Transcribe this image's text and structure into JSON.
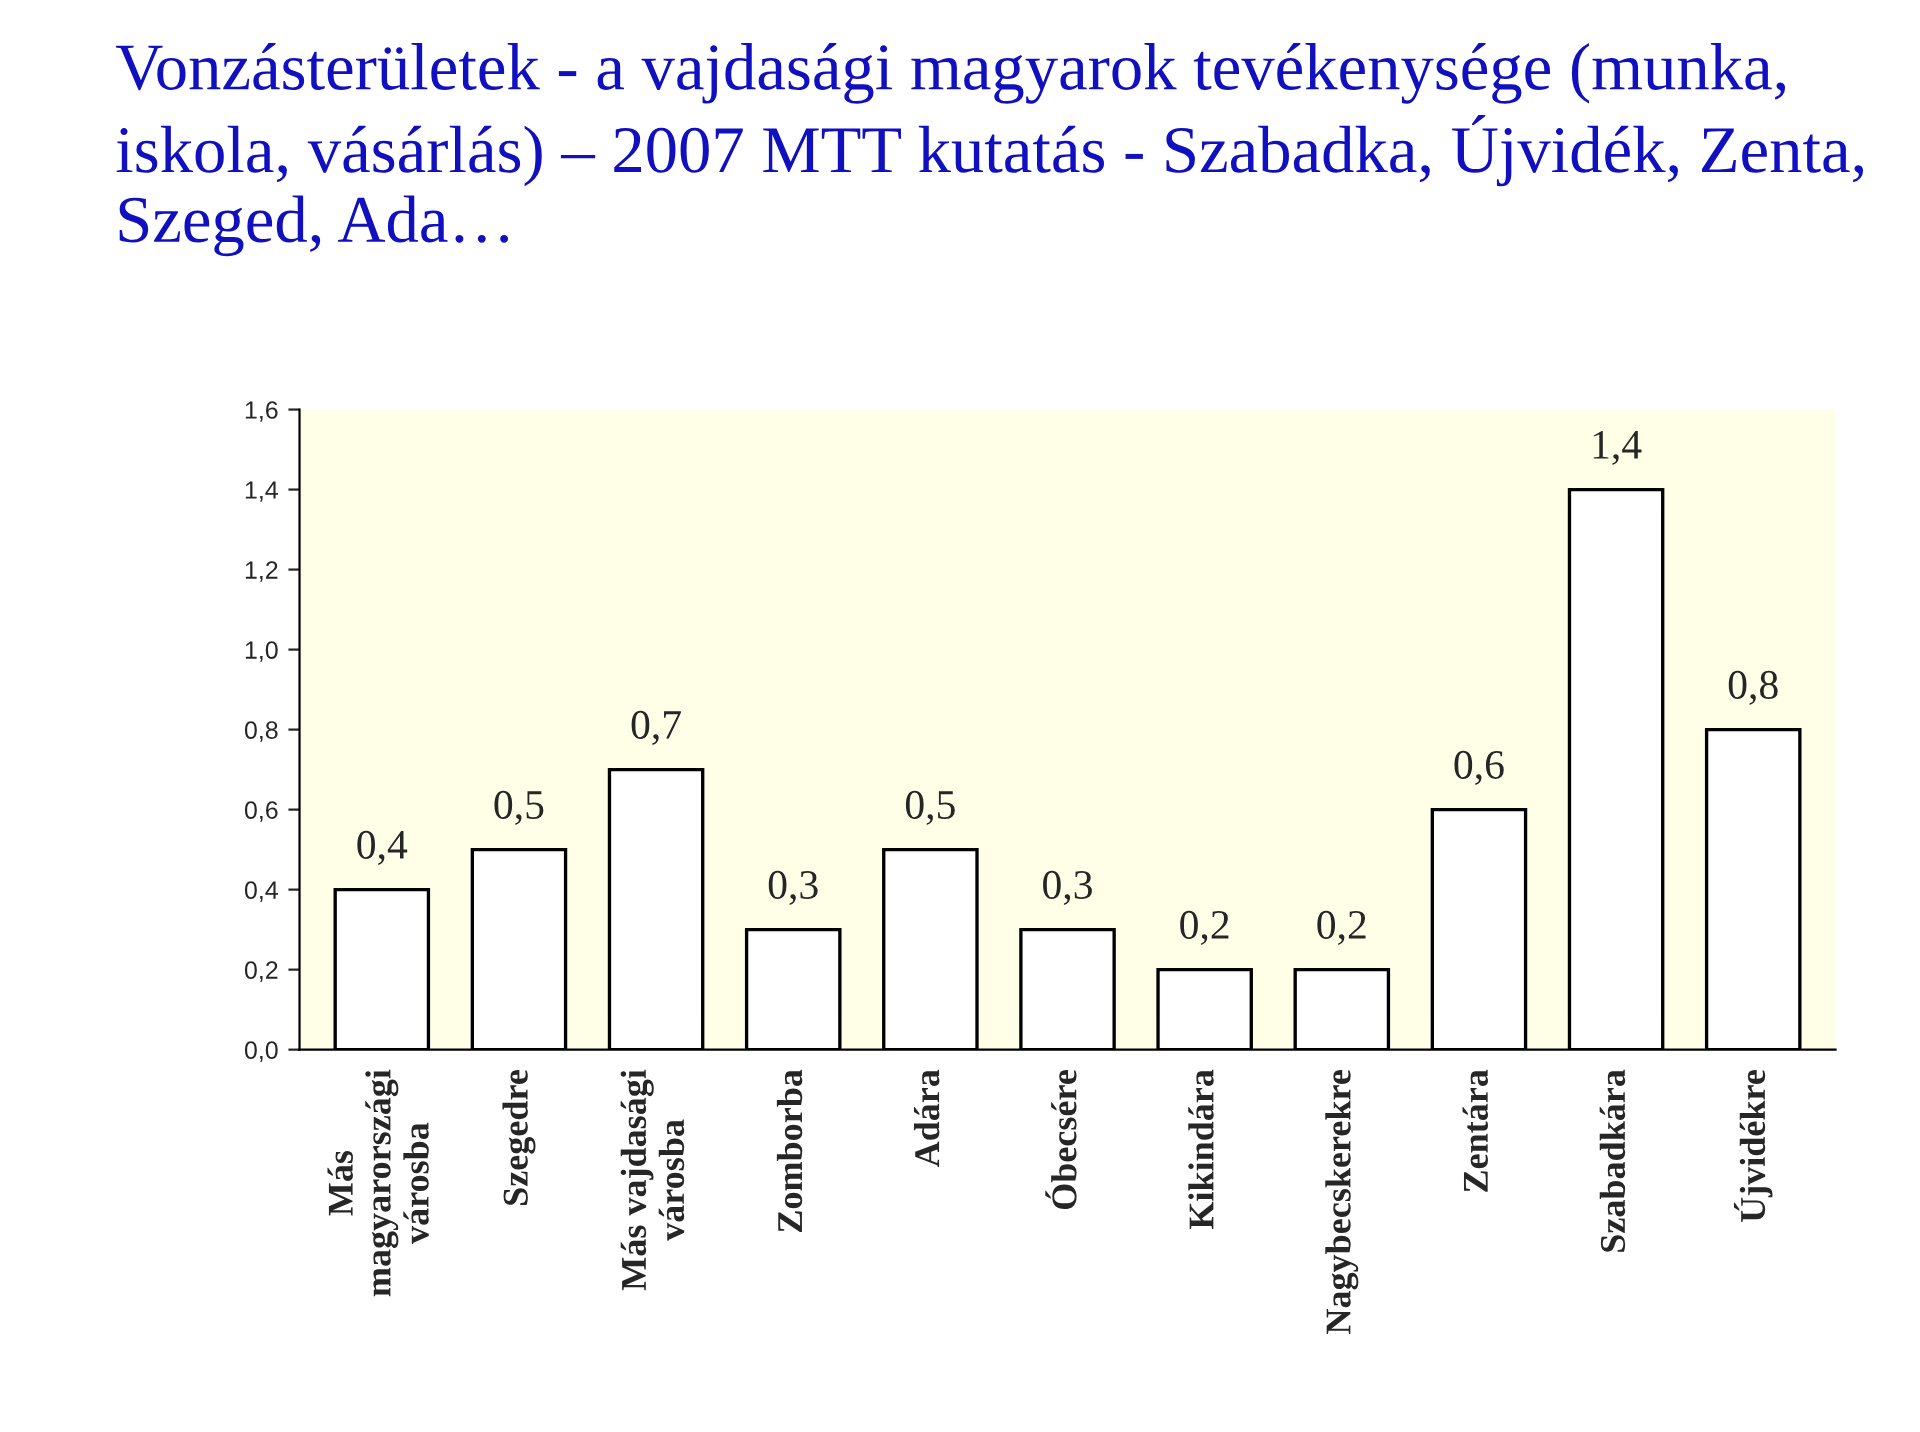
{
  "chart_data": {
    "type": "bar",
    "title": "Vonzásterületek - a vajdasági magyarok tevékenysége (munka, iskola, vásárlás) – 2007 MTT kutatás - Szabadka, Újvidék, Zenta, Szeged, Ada…",
    "categories": [
      "Más\nmagyarországi\nvárosba",
      "Szegedre",
      "Más vajdasági\nvárosba",
      "Zomborba",
      "Adára",
      "Óbecsére",
      "Kikindára",
      "Nagybecskerekre",
      "Zentára",
      "Szabadkára",
      "Újvidékre"
    ],
    "values": [
      0.4,
      0.5,
      0.7,
      0.3,
      0.5,
      0.3,
      0.2,
      0.2,
      0.6,
      1.4,
      0.8
    ],
    "value_labels": [
      "0,4",
      "0,5",
      "0,7",
      "0,3",
      "0,5",
      "0,3",
      "0,2",
      "0,2",
      "0,6",
      "1,4",
      "0,8"
    ],
    "color": "#ffffff",
    "ylim": [
      0,
      1.6
    ],
    "yticks": [
      {
        "value": 0,
        "label": "0,0"
      },
      {
        "value": 0.2,
        "label": "0,2"
      },
      {
        "value": 0.4,
        "label": "0,4"
      },
      {
        "value": 0.6,
        "label": "0,6"
      },
      {
        "value": 0.8,
        "label": "0,8"
      },
      {
        "value": 1.0,
        "label": "1,0"
      },
      {
        "value": 1.2,
        "label": "1,2"
      },
      {
        "value": 1.4,
        "label": "1,4"
      },
      {
        "value": 1.6,
        "label": "1,6"
      }
    ],
    "grid": false
  }
}
